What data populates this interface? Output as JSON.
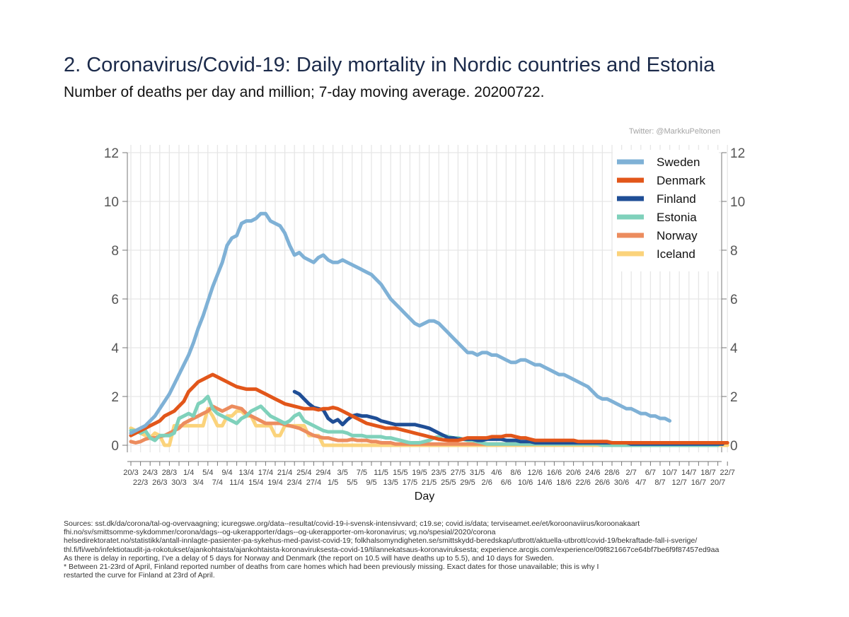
{
  "chart_data": {
    "type": "line",
    "title": "2. Coronavirus/Covid-19: Daily mortality in Nordic countries and Estonia",
    "subtitle": "Number of deaths per day and million; 7-day moving average. 20200722.",
    "credit": "Twitter: @MarkkuPeltonen",
    "xlabel": "Day",
    "ylabel": "",
    "ylim": [
      0,
      12
    ],
    "yticks": [
      0,
      2,
      4,
      6,
      8,
      10,
      12
    ],
    "grid": true,
    "legend_position": "top-right",
    "x_dates_start": "20/3",
    "x_tick_labels_upper": [
      "20/3",
      "24/3",
      "28/3",
      "1/4",
      "5/4",
      "9/4",
      "13/4",
      "17/4",
      "21/4",
      "25/4",
      "29/4",
      "3/5",
      "7/5",
      "11/5",
      "15/5",
      "19/5",
      "23/5",
      "27/5",
      "31/5",
      "4/6",
      "8/6",
      "12/6",
      "16/6",
      "20/6",
      "24/6",
      "28/6",
      "2/7",
      "6/7",
      "10/7",
      "14/7",
      "18/7",
      "22/7"
    ],
    "x_tick_labels_lower": [
      "22/3",
      "26/3",
      "30/3",
      "3/4",
      "7/4",
      "11/4",
      "15/4",
      "19/4",
      "23/4",
      "27/4",
      "1/5",
      "5/5",
      "9/5",
      "13/5",
      "17/5",
      "21/5",
      "25/5",
      "29/5",
      "2/6",
      "6/6",
      "10/6",
      "14/6",
      "18/6",
      "22/6",
      "26/6",
      "30/6",
      "4/7",
      "8/7",
      "12/7",
      "16/7",
      "20/7"
    ],
    "series": [
      {
        "name": "Sweden",
        "color": "#7fb1d6",
        "start_day": 0,
        "values": [
          0.5,
          0.6,
          0.7,
          0.8,
          1.0,
          1.2,
          1.5,
          1.8,
          2.1,
          2.5,
          2.9,
          3.3,
          3.7,
          4.2,
          4.8,
          5.3,
          5.9,
          6.5,
          7.0,
          7.5,
          8.2,
          8.5,
          8.6,
          9.1,
          9.2,
          9.2,
          9.3,
          9.5,
          9.5,
          9.2,
          9.1,
          9.0,
          8.7,
          8.2,
          7.8,
          7.9,
          7.7,
          7.6,
          7.5,
          7.7,
          7.8,
          7.6,
          7.5,
          7.5,
          7.6,
          7.5,
          7.4,
          7.3,
          7.2,
          7.1,
          7.0,
          6.8,
          6.6,
          6.3,
          6.0,
          5.8,
          5.6,
          5.4,
          5.2,
          5.0,
          4.9,
          5.0,
          5.1,
          5.1,
          5.0,
          4.8,
          4.6,
          4.4,
          4.2,
          4.0,
          3.8,
          3.8,
          3.7,
          3.8,
          3.8,
          3.7,
          3.7,
          3.6,
          3.5,
          3.4,
          3.4,
          3.5,
          3.5,
          3.4,
          3.3,
          3.3,
          3.2,
          3.1,
          3.0,
          2.9,
          2.9,
          2.8,
          2.7,
          2.6,
          2.5,
          2.4,
          2.2,
          2.0,
          1.9,
          1.9,
          1.8,
          1.7,
          1.6,
          1.5,
          1.5,
          1.4,
          1.3,
          1.3,
          1.2,
          1.2,
          1.1,
          1.1,
          1.0
        ]
      },
      {
        "name": "Denmark",
        "color": "#e2561a",
        "start_day": 0,
        "values": [
          0.4,
          0.5,
          0.6,
          0.7,
          0.8,
          0.9,
          1.0,
          1.2,
          1.3,
          1.4,
          1.6,
          1.8,
          2.2,
          2.4,
          2.6,
          2.7,
          2.8,
          2.9,
          2.8,
          2.7,
          2.6,
          2.5,
          2.4,
          2.35,
          2.3,
          2.3,
          2.3,
          2.2,
          2.1,
          2.0,
          1.9,
          1.8,
          1.7,
          1.65,
          1.6,
          1.55,
          1.5,
          1.5,
          1.5,
          1.45,
          1.5,
          1.5,
          1.55,
          1.5,
          1.4,
          1.3,
          1.2,
          1.1,
          1.0,
          0.9,
          0.85,
          0.8,
          0.75,
          0.7,
          0.7,
          0.7,
          0.65,
          0.6,
          0.55,
          0.5,
          0.45,
          0.4,
          0.35,
          0.3,
          0.25,
          0.22,
          0.2,
          0.2,
          0.2,
          0.25,
          0.3,
          0.3,
          0.3,
          0.3,
          0.3,
          0.35,
          0.35,
          0.35,
          0.4,
          0.4,
          0.35,
          0.3,
          0.3,
          0.25,
          0.2,
          0.2,
          0.2,
          0.2,
          0.2,
          0.2,
          0.2,
          0.2,
          0.2,
          0.15,
          0.15,
          0.15,
          0.15,
          0.15,
          0.15,
          0.15,
          0.1,
          0.1,
          0.1,
          0.1,
          0.1,
          0.1,
          0.1,
          0.1,
          0.1,
          0.1,
          0.1,
          0.1,
          0.1,
          0.1,
          0.1,
          0.1,
          0.1,
          0.1,
          0.1,
          0.1,
          0.1,
          0.1,
          0.1,
          0.1,
          0.1
        ]
      },
      {
        "name": "Finland",
        "color": "#1f4e96",
        "start_day": 34,
        "values": [
          2.2,
          2.1,
          1.9,
          1.7,
          1.55,
          1.5,
          1.45,
          1.1,
          0.95,
          1.05,
          0.85,
          1.05,
          1.2,
          1.25,
          1.2,
          1.2,
          1.15,
          1.1,
          1.0,
          0.95,
          0.9,
          0.85,
          0.85,
          0.85,
          0.85,
          0.85,
          0.8,
          0.75,
          0.7,
          0.6,
          0.5,
          0.4,
          0.3,
          0.3,
          0.25,
          0.25,
          0.25,
          0.25,
          0.2,
          0.2,
          0.25,
          0.25,
          0.25,
          0.25,
          0.2,
          0.2,
          0.2,
          0.15,
          0.15,
          0.15,
          0.1,
          0.1,
          0.1,
          0.1,
          0.1,
          0.1,
          0.1,
          0.1,
          0.1,
          0.1,
          0.1,
          0.1,
          0.1,
          0.1,
          0.1,
          0.1,
          0.1,
          0.1,
          0.1,
          0.1,
          0.05,
          0.05,
          0.05,
          0.05,
          0.05,
          0.05,
          0.05,
          0.05,
          0.05,
          0.05,
          0.05,
          0.05,
          0.05,
          0.05,
          0.05,
          0.05,
          0.05,
          0.05,
          0.05,
          0.05
        ]
      },
      {
        "name": "Estonia",
        "color": "#7fd1bb",
        "start_day": 0,
        "values": [
          0.6,
          0.6,
          0.5,
          0.6,
          0.3,
          0.2,
          0.4,
          0.4,
          0.4,
          0.5,
          1.1,
          1.2,
          1.3,
          1.2,
          1.7,
          1.8,
          2.0,
          1.5,
          1.3,
          1.2,
          1.1,
          1.0,
          0.9,
          1.1,
          1.2,
          1.4,
          1.5,
          1.6,
          1.4,
          1.2,
          1.1,
          1.0,
          0.9,
          1.0,
          1.2,
          1.3,
          1.0,
          0.9,
          0.8,
          0.7,
          0.6,
          0.55,
          0.55,
          0.55,
          0.55,
          0.5,
          0.4,
          0.4,
          0.4,
          0.35,
          0.35,
          0.35,
          0.35,
          0.3,
          0.3,
          0.25,
          0.2,
          0.15,
          0.1,
          0.1,
          0.1,
          0.15,
          0.2,
          0.3,
          0.35,
          0.4,
          0.35,
          0.3,
          0.3,
          0.25,
          0.2,
          0.2,
          0.15,
          0.1,
          0.05,
          0.05,
          0.05,
          0.05,
          0.05,
          0.05,
          0.05,
          0.05,
          0.05,
          0.05,
          0.05,
          0.05,
          0.05,
          0.05,
          0.05,
          0.05,
          0.05,
          0.05,
          0.05,
          0.05,
          0.05,
          0.05,
          0.05,
          0.05,
          0.0,
          0.0,
          0.0,
          0.0,
          0.0,
          0.0,
          0.0,
          0.0,
          0.0,
          0.0,
          0.0,
          0.0,
          0.0,
          0.0,
          0.0,
          0.0,
          0.0,
          0.0,
          0.0,
          0.0,
          0.0,
          0.0,
          0.0,
          0.0,
          0.0
        ]
      },
      {
        "name": "Norway",
        "color": "#ec8c5e",
        "start_day": 0,
        "values": [
          0.15,
          0.1,
          0.15,
          0.25,
          0.3,
          0.3,
          0.35,
          0.4,
          0.5,
          0.6,
          0.7,
          0.9,
          1.0,
          1.1,
          1.2,
          1.3,
          1.4,
          1.6,
          1.5,
          1.4,
          1.5,
          1.6,
          1.55,
          1.5,
          1.3,
          1.2,
          1.1,
          1.0,
          0.9,
          0.9,
          0.9,
          0.9,
          0.85,
          0.8,
          0.75,
          0.7,
          0.6,
          0.5,
          0.4,
          0.35,
          0.3,
          0.3,
          0.25,
          0.2,
          0.2,
          0.2,
          0.25,
          0.2,
          0.2,
          0.2,
          0.15,
          0.15,
          0.1,
          0.1,
          0.1,
          0.05,
          0.05,
          0.05,
          0.05,
          0.05,
          0.05,
          0.05,
          0.05,
          0.05,
          0.05,
          0.05,
          0.05,
          0.05,
          0.05,
          0.05,
          0.05,
          0.05,
          0.05,
          0.05,
          0.05,
          0.05,
          0.05,
          0.05,
          0.05,
          0.05,
          0.05,
          0.05,
          0.05,
          0.05,
          0.05,
          0.05,
          0.05,
          0.05,
          0.05,
          0.05,
          0.05,
          0.05,
          0.05,
          0.05,
          0.05,
          0.05,
          0.05,
          0.05,
          0.05,
          0.05,
          0.05,
          0.05,
          0.05,
          0.05,
          0.05,
          0.05,
          0.05,
          0.05,
          0.05,
          0.05,
          0.05,
          0.05,
          0.05,
          0.05,
          0.05,
          0.05,
          0.05,
          0.05,
          0.05
        ]
      },
      {
        "name": "Iceland",
        "color": "#fbd37b",
        "start_day": 0,
        "values": [
          0.7,
          0.6,
          0.5,
          0.4,
          0.3,
          0.5,
          0.4,
          0.0,
          0.0,
          0.8,
          0.8,
          0.8,
          0.8,
          0.8,
          0.8,
          0.8,
          1.5,
          1.2,
          0.8,
          0.8,
          1.2,
          1.2,
          1.4,
          1.4,
          1.2,
          1.2,
          0.8,
          0.8,
          0.8,
          0.8,
          0.4,
          0.4,
          0.8,
          0.8,
          0.8,
          0.8,
          0.8,
          0.4,
          0.4,
          0.4,
          0.0,
          0.0,
          0.0,
          0.0,
          0.0,
          0.0,
          0.0,
          0.0,
          0.0,
          0.0,
          0.0,
          0.0,
          0.0,
          0.0,
          0.0,
          0.0,
          0.0,
          0.0,
          0.0,
          0.0,
          0.0,
          0.0,
          0.0,
          0.0,
          0.0,
          0.0,
          0.0,
          0.0,
          0.0,
          0.0,
          0.0,
          0.0,
          0.0,
          0.0,
          0.0,
          0.0,
          0.0,
          0.0,
          0.0,
          0.0,
          0.0,
          0.0,
          0.0,
          0.0,
          0.0,
          0.0,
          0.0,
          0.0,
          0.0,
          0.0,
          0.0,
          0.0,
          0.0,
          0.0,
          0.0,
          0.0,
          0.0,
          0.0,
          0.0,
          0.0,
          0.0,
          0.0,
          0.0,
          0.0,
          0.0,
          0.0,
          0.0,
          0.0,
          0.0,
          0.0,
          0.0,
          0.0,
          0.0,
          0.0,
          0.0,
          0.0,
          0.0,
          0.0,
          0.0,
          0.0,
          0.0,
          0.0,
          0.0,
          0.0,
          0.0
        ]
      }
    ]
  },
  "sources_lines": [
    "Sources: sst.dk/da/corona/tal-og-overvaagning; icuregswe.org/data--resultat/covid-19-i-svensk-intensivvard; c19.se; covid.is/data;  terviseamet.ee/et/koroonaviirus/koroonakaart",
    "fhi.no/sv/smittsomme-sykdommer/corona/dags--og-ukerapporter/dags--og-ukerapporter-om-koronavirus; vg.no/spesial/2020/corona",
    "helsedirektoratet.no/statistikk/antall-innlagte-pasienter-pa-sykehus-med-pavist-covid-19; folkhalsomyndigheten.se/smittskydd-beredskap/utbrott/aktuella-utbrott/covid-19/bekraftade-fall-i-sverige/",
    "thl.fi/fi/web/infektiotaudit-ja-rokotukset/ajankohtaista/ajankohtaista-koronaviruksesta-covid-19/tilannekatsaus-koronaviruksesta; experience.arcgis.com/experience/09f821667ce64bf7be6f9f87457ed9aa",
    "As there is delay in reporting, I've a delay of 5 days for Norway and Denmark (the report on 10.5 will have deaths up to 5.5), and 10 days for Sweden.",
    "* Between 21-23rd of April, Finland reported number of deaths from care homes which had been previously missing. Exact dates for those unavailable; this is why I",
    "restarted the curve for Finland at 23rd of April."
  ]
}
